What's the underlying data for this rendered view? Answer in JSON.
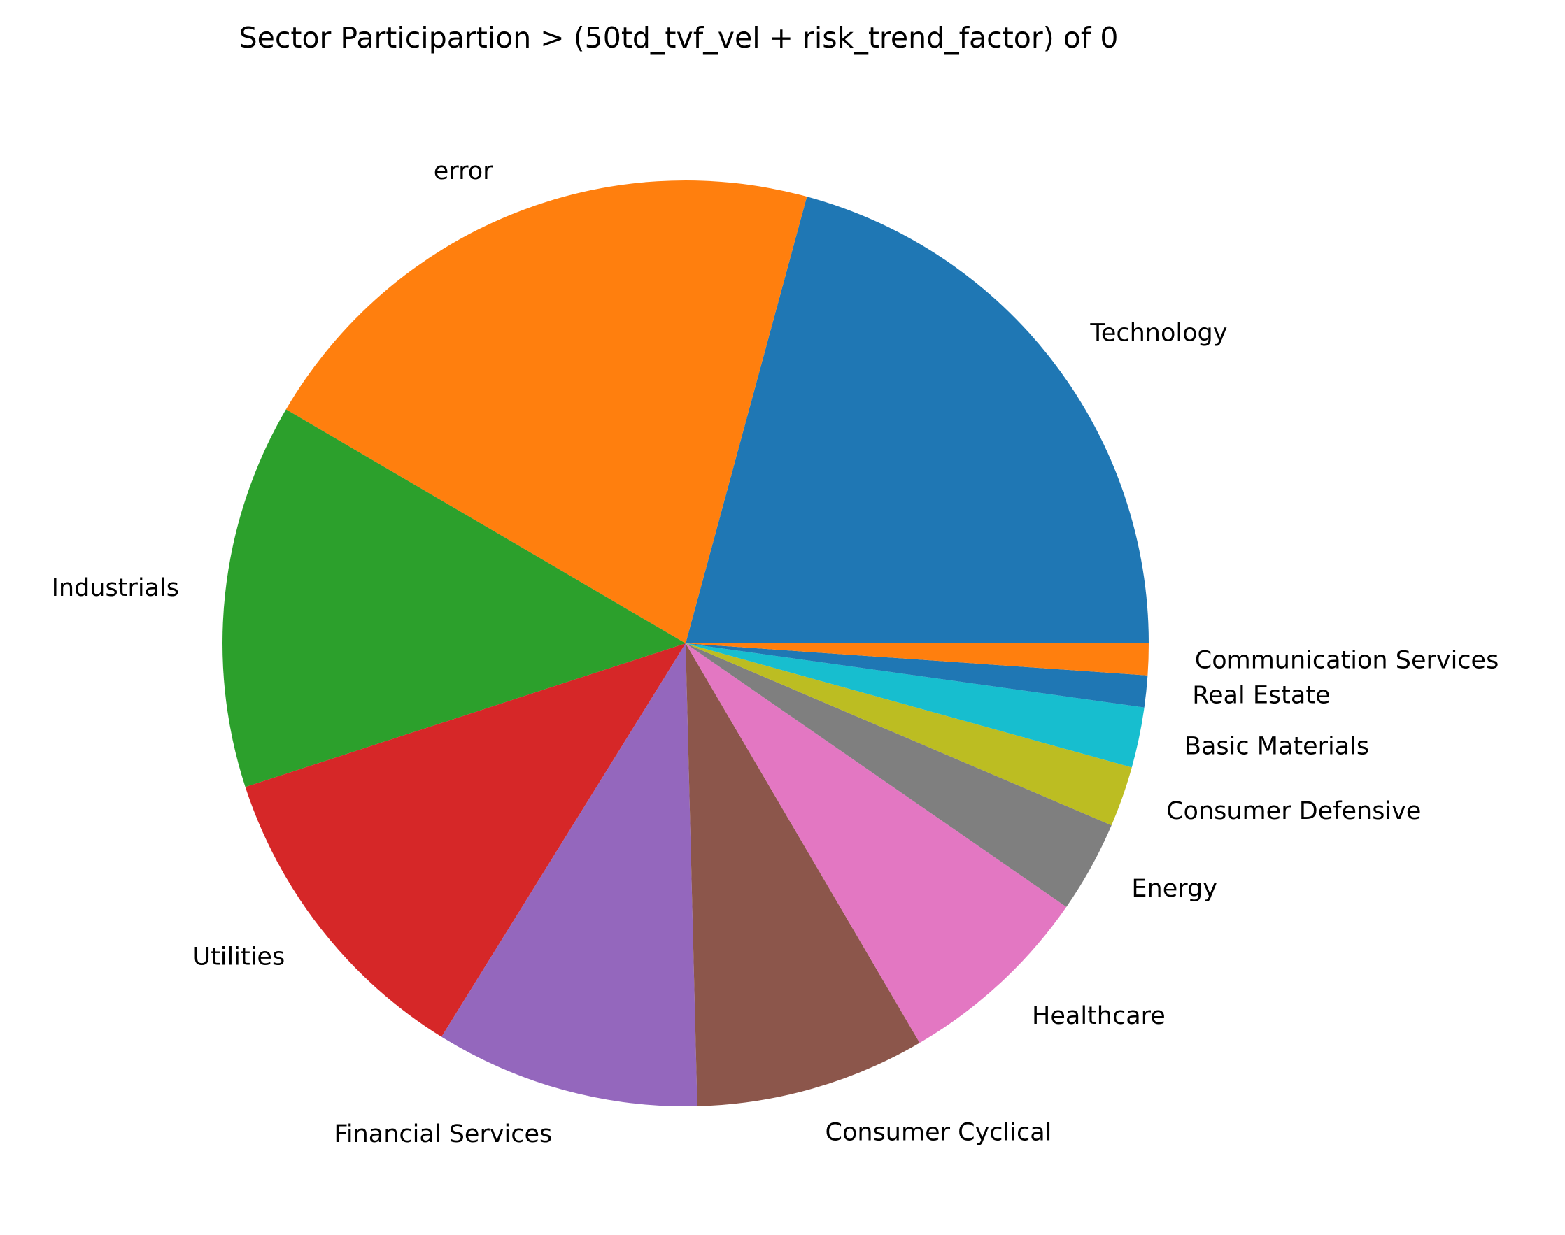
{
  "chart_data": {
    "type": "pie",
    "title": "Sector Participartion > (50td_tvf_vel + risk_trend_factor) of 0",
    "start_angle_deg": 0,
    "direction": "counterclockwise",
    "legend": "none",
    "slices": [
      {
        "label": "Technology",
        "value": 20.7,
        "color": "#1f77b4"
      },
      {
        "label": "error",
        "value": 20.7,
        "color": "#ff7f0e"
      },
      {
        "label": "Industrials",
        "value": 13.4,
        "color": "#2ca02c"
      },
      {
        "label": "Utilities",
        "value": 11.1,
        "color": "#d62728"
      },
      {
        "label": "Financial Services",
        "value": 9.2,
        "color": "#9467bd"
      },
      {
        "label": "Consumer Cyclical",
        "value": 8.0,
        "color": "#8c564b"
      },
      {
        "label": "Healthcare",
        "value": 6.9,
        "color": "#e377c2"
      },
      {
        "label": "Energy",
        "value": 3.2,
        "color": "#7f7f7f"
      },
      {
        "label": "Consumer Defensive",
        "value": 2.1,
        "color": "#bcbd22"
      },
      {
        "label": "Basic Materials",
        "value": 2.1,
        "color": "#17becf"
      },
      {
        "label": "Real Estate",
        "value": 1.1,
        "color": "#1f77b4"
      },
      {
        "label": "Communication Services",
        "value": 1.1,
        "color": "#ff7f0e"
      }
    ]
  }
}
